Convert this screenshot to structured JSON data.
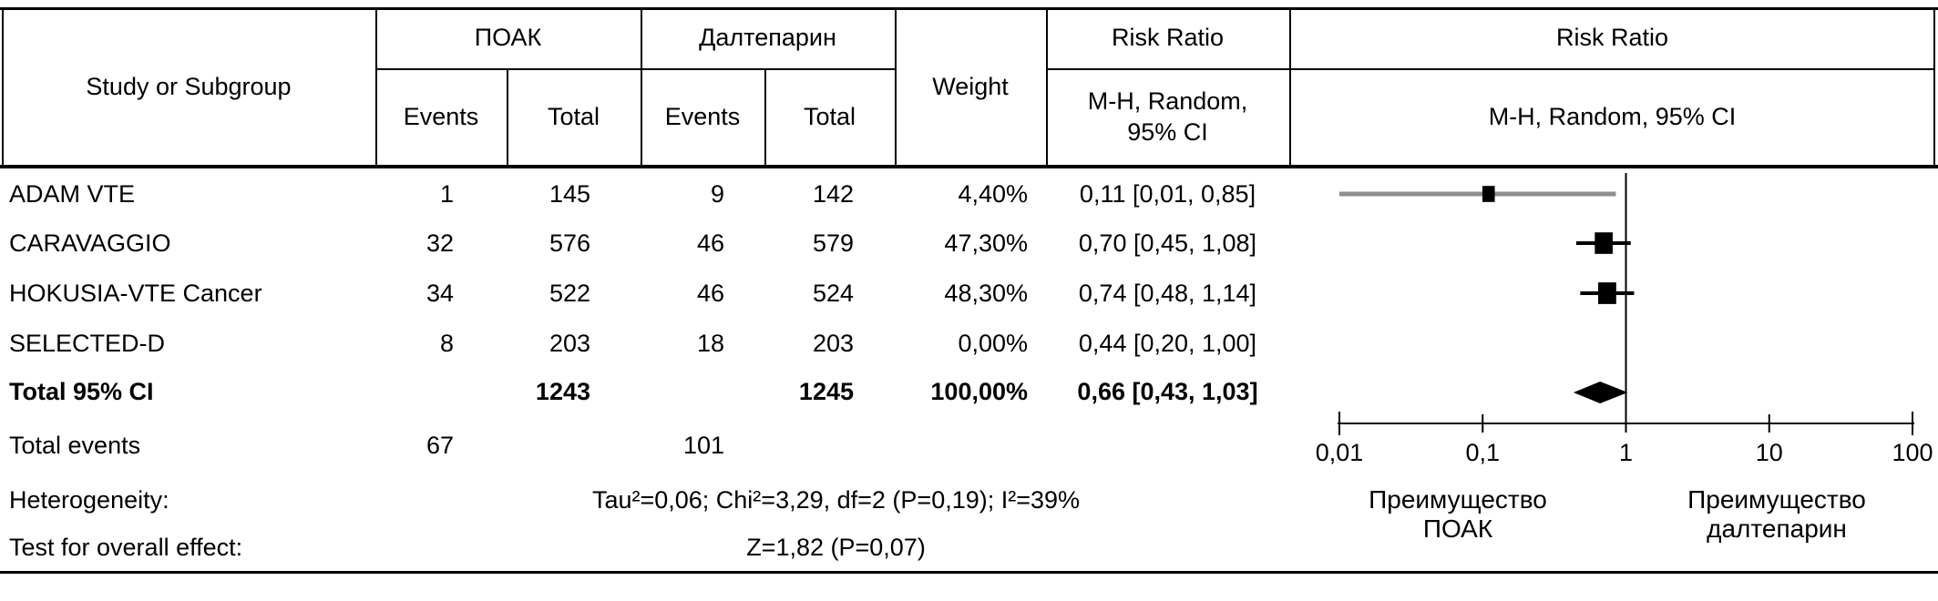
{
  "table": {
    "header": {
      "study": "Study or Subgroup",
      "group1": "ПОАК",
      "group2": "Далтепарин",
      "events": "Events",
      "total": "Total",
      "weight": "Weight",
      "rr_title": "Risk Ratio",
      "rr_sub_line1": "M-H, Random,",
      "rr_sub_line2": "95% CI",
      "plot_title": "Risk Ratio",
      "plot_sub": "M-H, Random, 95% CI"
    },
    "rows": [
      {
        "study": "ADAM VTE",
        "e1": "1",
        "t1": "145",
        "e2": "9",
        "t2": "142",
        "weight": "4,40%",
        "ci": "0,11 [0,01, 0,85]"
      },
      {
        "study": "CARAVAGGIO",
        "e1": "32",
        "t1": "576",
        "e2": "46",
        "t2": "579",
        "weight": "47,30%",
        "ci": "0,70 [0,45, 1,08]"
      },
      {
        "study": "HOKUSIA-VTE Cancer",
        "e1": "34",
        "t1": "522",
        "e2": "46",
        "t2": "524",
        "weight": "48,30%",
        "ci": "0,74 [0,48, 1,14]"
      },
      {
        "study": "SELECTED-D",
        "e1": "8",
        "t1": "203",
        "e2": "18",
        "t2": "203",
        "weight": "0,00%",
        "ci": "0,44 [0,20, 1,00]"
      }
    ],
    "total_row": {
      "label": "Total 95% CI",
      "t1": "1243",
      "t2": "1245",
      "weight": "100,00%",
      "ci": "0,66 [0,43, 1,03]"
    },
    "total_events": {
      "label": "Total events",
      "e1": "67",
      "e2": "101"
    },
    "heterogeneity": {
      "label": "Heterogeneity:",
      "value": "Tau²=0,06; Chi²=3,29, df=2 (P=0,19); I²=39%"
    },
    "overall_effect": {
      "label": "Test for overall effect:",
      "value": "Z=1,82 (P=0,07)"
    }
  },
  "chart_data": {
    "type": "forest",
    "scale": "log10",
    "axis": {
      "min": 0.01,
      "max": 100,
      "ticks": [
        {
          "v": 0.01,
          "label": "0,01"
        },
        {
          "v": 0.1,
          "label": "0,1"
        },
        {
          "v": 1,
          "label": "1"
        },
        {
          "v": 10,
          "label": "10"
        },
        {
          "v": 100,
          "label": "100"
        }
      ]
    },
    "studies": [
      {
        "name": "ADAM VTE",
        "rr": 0.11,
        "lo": 0.01,
        "hi": 0.85,
        "weight": 4.4,
        "line_color": "#8f8f8f"
      },
      {
        "name": "CARAVAGGIO",
        "rr": 0.7,
        "lo": 0.45,
        "hi": 1.08,
        "weight": 47.3,
        "line_color": "#000000"
      },
      {
        "name": "HOKUSIA-VTE Cancer",
        "rr": 0.74,
        "lo": 0.48,
        "hi": 1.14,
        "weight": 48.3,
        "line_color": "#000000"
      },
      {
        "name": "SELECTED-D",
        "rr": 0.44,
        "lo": 0.2,
        "hi": 1.0,
        "weight": 0,
        "line_color": null
      }
    ],
    "overall": {
      "rr": 0.66,
      "lo": 0.43,
      "hi": 1.03
    },
    "ref_value": 1,
    "footer_labels": {
      "left_line1": "Преимущество",
      "left_line2": "ПОАК",
      "right_line1": "Преимущество",
      "right_line2": "далтепарин"
    },
    "colors": {
      "marker": "#000000",
      "gray_line": "#8f8f8f",
      "axis": "#000000"
    }
  }
}
